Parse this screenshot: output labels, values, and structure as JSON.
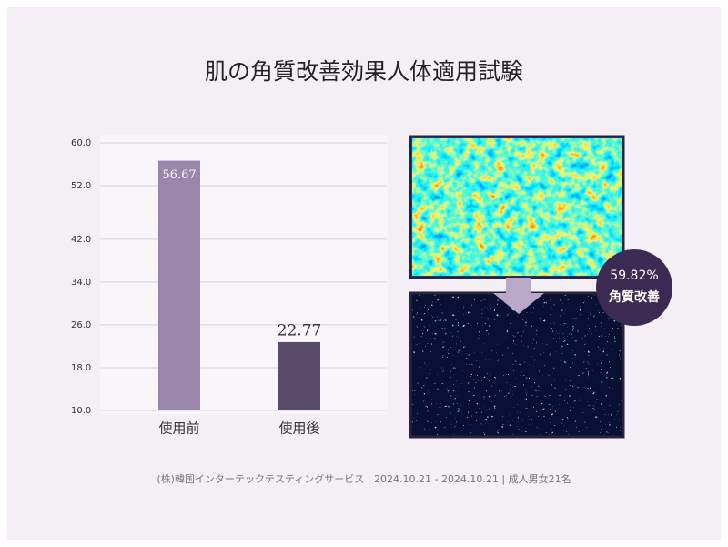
{
  "chart_data": {
    "type": "bar",
    "title": "肌の角質改善効果人体適用試験",
    "categories": [
      "使用前",
      "使用後"
    ],
    "values": [
      56.67,
      22.77
    ],
    "colors": [
      "#9a86ab",
      "#594a6b"
    ],
    "ylim": [
      10,
      60
    ],
    "yticks": [
      {
        "value": 10,
        "label": "10.0"
      },
      {
        "value": 18,
        "label": "18.0"
      },
      {
        "value": 26,
        "label": "26.0"
      },
      {
        "value": 34,
        "label": "34.0"
      },
      {
        "value": 42,
        "label": "42.0"
      },
      {
        "value": 52,
        "label": "52.0"
      },
      {
        "value": 60,
        "label": "60.0"
      }
    ],
    "grid": true,
    "badge": {
      "value": "59.82%",
      "label": "角質改善"
    },
    "footer": "(株)韓国インターテックテスティングサービス | 2024.10.21 - 2024.10.21 | 成人男女21名"
  }
}
